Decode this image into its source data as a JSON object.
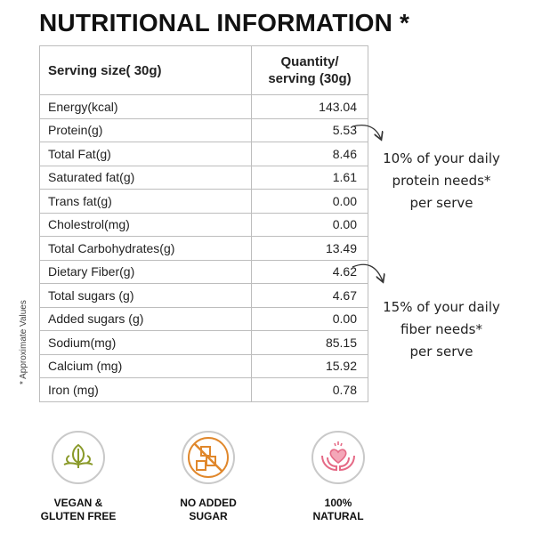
{
  "title": "NUTRITIONAL INFORMATION *",
  "side_note": "* Approximate Values",
  "table": {
    "header": {
      "col1": "Serving size( 30g)",
      "col2_line1": "Quantity/",
      "col2_line2": "serving (30g)"
    },
    "rows": [
      {
        "name": "Energy(kcal)",
        "value": "143.04"
      },
      {
        "name": "Protein(g)",
        "value": "5.53"
      },
      {
        "name": "Total Fat(g)",
        "value": "8.46"
      },
      {
        "name": "Saturated fat(g)",
        "value": "1.61"
      },
      {
        "name": "Trans fat(g)",
        "value": "0.00"
      },
      {
        "name": "Cholestrol(mg)",
        "value": "0.00"
      },
      {
        "name": "Total Carbohydrates(g)",
        "value": "13.49"
      },
      {
        "name": "Dietary  Fiber(g)",
        "value": "4.62"
      },
      {
        "name": "Total sugars (g)",
        "value": "4.67"
      },
      {
        "name": "Added sugars (g)",
        "value": "0.00"
      },
      {
        "name": "Sodium(mg)",
        "value": "85.15"
      },
      {
        "name": "Calcium (mg)",
        "value": "15.92"
      },
      {
        "name": "Iron (mg)",
        "value": "0.78"
      }
    ]
  },
  "notes": {
    "protein": {
      "line1": "10% of your daily",
      "line2": "protein needs*",
      "line3": "per serve"
    },
    "fiber": {
      "line1": "15% of your daily",
      "line2": "fiber needs*",
      "line3": "per serve"
    }
  },
  "badges": [
    {
      "icon": "leaf-icon",
      "line1": "VEGAN &",
      "line2": "GLUTEN FREE",
      "color": "#8a9a2a"
    },
    {
      "icon": "sugar-cubes-crossed-icon",
      "line1": "NO ADDED",
      "line2": "SUGAR",
      "color": "#e0872b"
    },
    {
      "icon": "heart-hands-icon",
      "line1": "100%",
      "line2": "NATURAL",
      "color": "#e56a86"
    }
  ]
}
